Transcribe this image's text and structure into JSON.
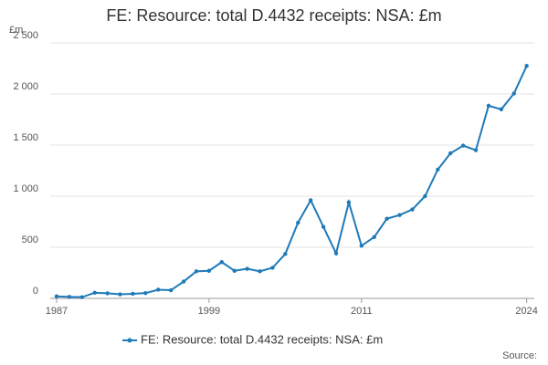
{
  "chart_data": {
    "type": "line",
    "title": "FE: Resource: total D.4432 receipts: NSA: £m",
    "ylabel": "£m",
    "source": "Source:",
    "x": [
      1987,
      1988,
      1989,
      1990,
      1991,
      1992,
      1993,
      1994,
      1995,
      1996,
      1997,
      1998,
      1999,
      2000,
      2001,
      2002,
      2003,
      2004,
      2005,
      2006,
      2007,
      2008,
      2009,
      2010,
      2011,
      2012,
      2013,
      2014,
      2015,
      2016,
      2017,
      2018,
      2019,
      2020,
      2021,
      2022,
      2023,
      2024
    ],
    "series": [
      {
        "name": "FE: Resource: total D.4432 receipts: NSA: £m",
        "color": "#1f7ab8",
        "values": [
          20,
          15,
          12,
          55,
          50,
          40,
          45,
          52,
          85,
          80,
          165,
          265,
          270,
          355,
          270,
          290,
          265,
          300,
          435,
          740,
          960,
          700,
          440,
          940,
          515,
          600,
          780,
          815,
          870,
          1000,
          1260,
          1420,
          1495,
          1450,
          1885,
          1850,
          2005,
          2275
        ]
      }
    ],
    "xlim": [
      1986.5,
      2024.6
    ],
    "xticks": [
      1987,
      1999,
      2011,
      2024
    ],
    "ylim": [
      0,
      2500
    ],
    "yticks": [
      0,
      500,
      {
        "value": 1000,
        "label": "1 000"
      },
      {
        "value": 1500,
        "label": "1 500"
      },
      {
        "value": 2000,
        "label": "2 000"
      },
      {
        "value": 2500,
        "label": "2 500"
      }
    ],
    "grid": true
  }
}
